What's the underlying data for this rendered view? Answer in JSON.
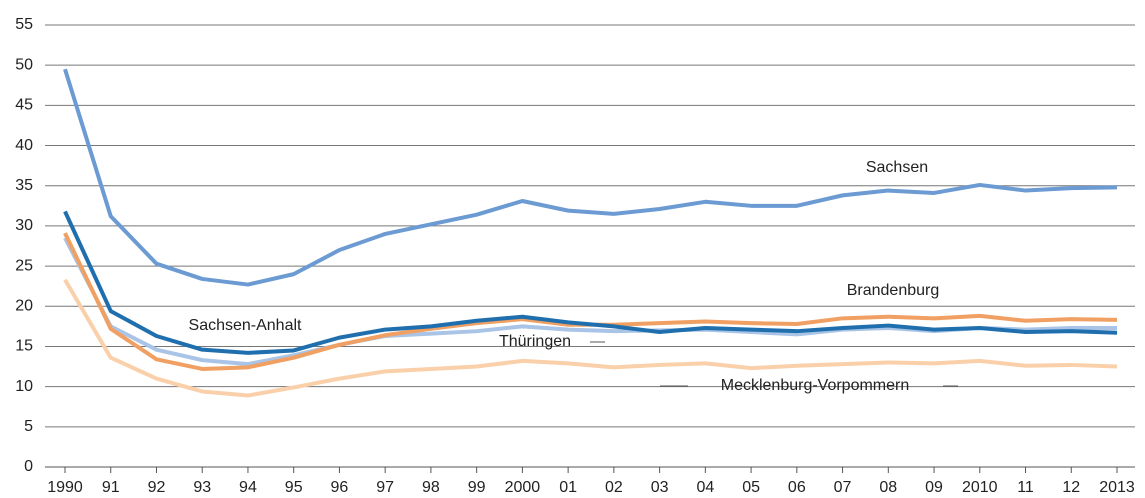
{
  "chart_data": {
    "type": "line",
    "categories": [
      "1990",
      "91",
      "92",
      "93",
      "94",
      "95",
      "96",
      "97",
      "98",
      "99",
      "2000",
      "01",
      "02",
      "03",
      "04",
      "05",
      "06",
      "07",
      "08",
      "09",
      "2010",
      "11",
      "12",
      "2013"
    ],
    "series": [
      {
        "name": "Sachsen",
        "color": "#6b9bd2",
        "values": [
          49.5,
          31.2,
          25.3,
          23.4,
          22.7,
          24.0,
          27.0,
          29.0,
          30.2,
          31.4,
          33.1,
          31.9,
          31.5,
          32.1,
          33.0,
          32.5,
          32.5,
          33.8,
          34.4,
          34.1,
          35.1,
          34.4,
          34.7,
          34.8
        ]
      },
      {
        "name": "Mecklenburg-Vorpommern",
        "color": "#f9d0aa",
        "values": [
          23.3,
          13.6,
          11.0,
          9.4,
          8.9,
          9.9,
          11.0,
          11.9,
          12.2,
          12.5,
          13.2,
          12.9,
          12.4,
          12.7,
          12.9,
          12.3,
          12.6,
          12.8,
          13.0,
          12.9,
          13.2,
          12.6,
          12.7,
          12.5
        ]
      },
      {
        "name": "Thüringen",
        "color": "#a9c4e6",
        "values": [
          28.5,
          17.5,
          14.6,
          13.3,
          12.8,
          13.9,
          15.2,
          16.3,
          16.6,
          16.9,
          17.5,
          17.1,
          16.9,
          17.0,
          17.1,
          16.8,
          16.5,
          17.1,
          17.3,
          16.9,
          17.3,
          17.1,
          17.3,
          17.3
        ]
      },
      {
        "name": "Brandenburg",
        "color": "#f0a062",
        "values": [
          29.1,
          17.2,
          13.4,
          12.2,
          12.4,
          13.6,
          15.2,
          16.4,
          17.2,
          17.9,
          18.4,
          17.7,
          17.7,
          17.9,
          18.1,
          17.9,
          17.8,
          18.5,
          18.7,
          18.5,
          18.8,
          18.2,
          18.4,
          18.3
        ]
      },
      {
        "name": "Sachsen-Anhalt",
        "color": "#1f6fae",
        "values": [
          31.8,
          19.4,
          16.3,
          14.6,
          14.2,
          14.5,
          16.1,
          17.1,
          17.5,
          18.2,
          18.7,
          18.0,
          17.5,
          16.8,
          17.3,
          17.1,
          16.9,
          17.3,
          17.6,
          17.1,
          17.3,
          16.8,
          16.9,
          16.7
        ]
      }
    ],
    "ylim": [
      0,
      55
    ],
    "yticks": [
      0,
      5,
      10,
      15,
      20,
      25,
      30,
      35,
      40,
      45,
      50,
      55
    ],
    "grid": true
  }
}
